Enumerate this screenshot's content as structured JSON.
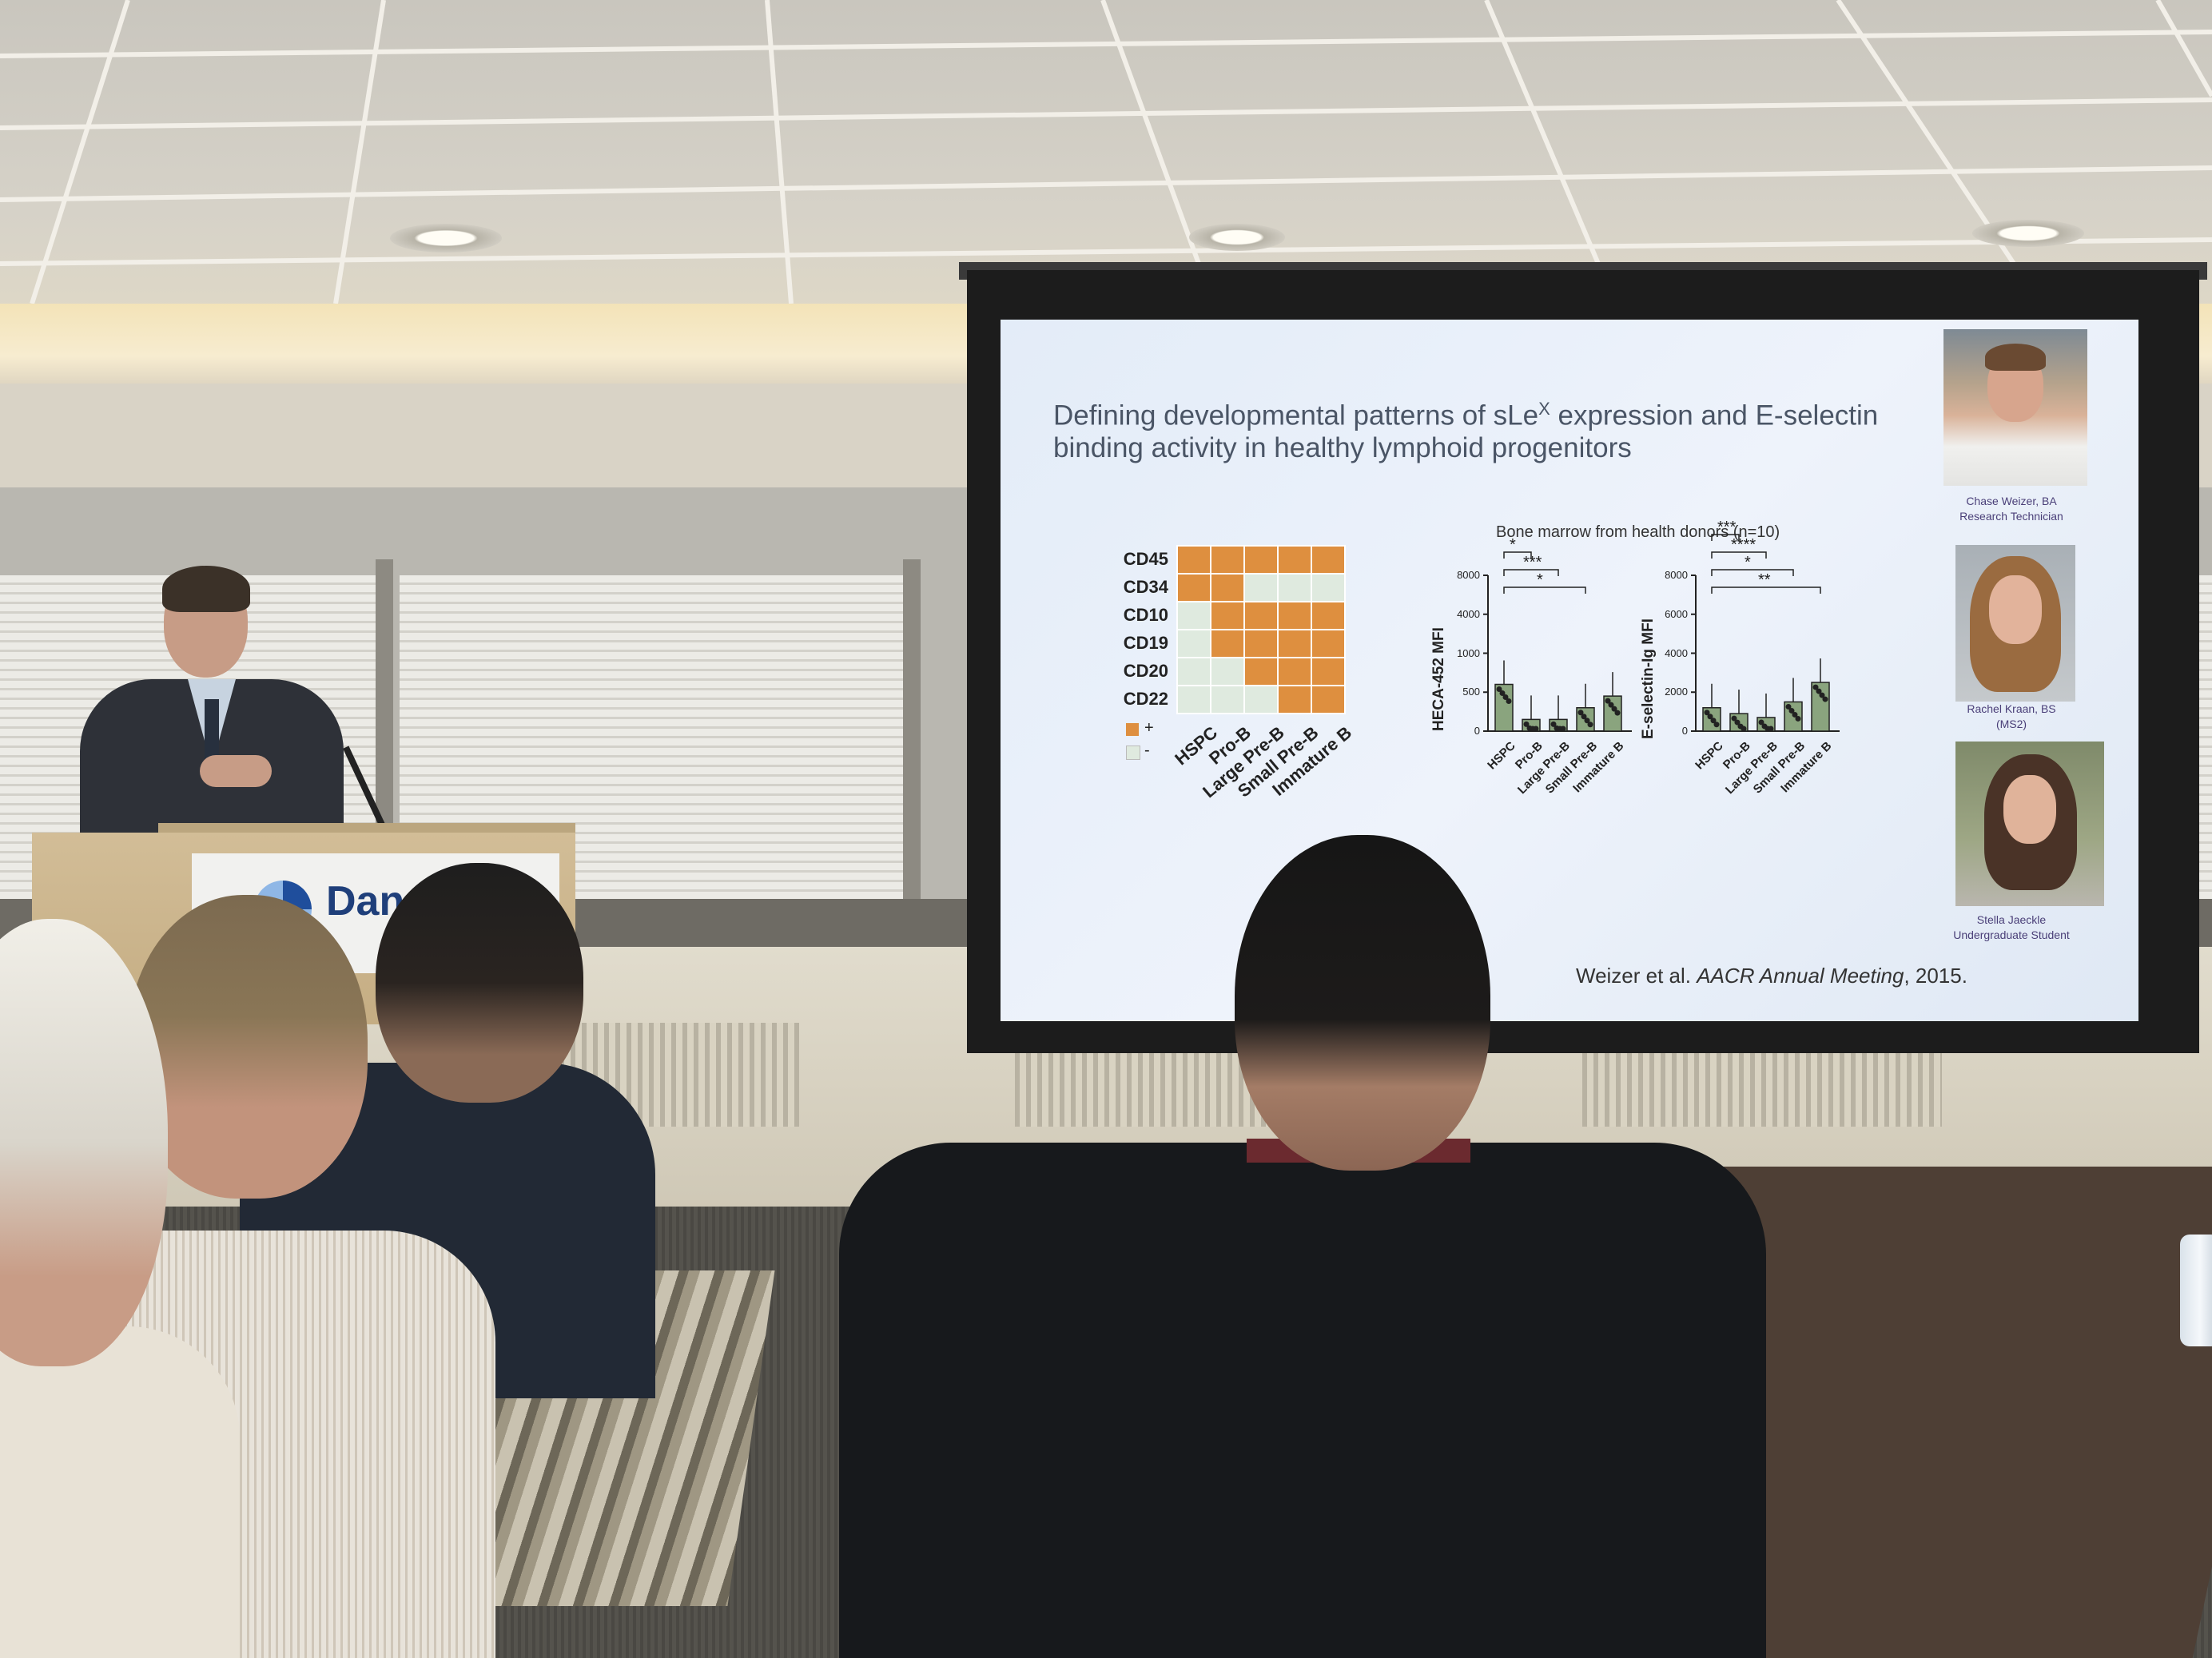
{
  "slide": {
    "title_line1_pre": "Defining developmental patterns of sLe",
    "title_sup": "X",
    "title_line1_post": " expression and E-selectin",
    "title_line2": "binding activity in healthy lymphoid progenitors",
    "matrix": {
      "rows": [
        "CD45",
        "CD34",
        "CD10",
        "CD19",
        "CD20",
        "CD22"
      ],
      "columns": [
        "HSPC",
        "Pro-B",
        "Large Pre-B",
        "Small Pre-B",
        "Immature B"
      ],
      "cells": [
        [
          1,
          1,
          1,
          1,
          1
        ],
        [
          1,
          1,
          0,
          0,
          0
        ],
        [
          0,
          1,
          1,
          1,
          1
        ],
        [
          0,
          1,
          1,
          1,
          1
        ],
        [
          0,
          0,
          1,
          1,
          1
        ],
        [
          0,
          0,
          0,
          1,
          1
        ]
      ],
      "legend_plus": "+",
      "legend_minus": "-",
      "color_on": "#de8f3f",
      "color_off": "#dfeadf"
    },
    "chart_subtitle": "Bone marrow from health donors (n=10)",
    "citation_pre": "Weizer et al. ",
    "citation_italic": "AACR Annual Meeting",
    "citation_post": ", 2015.",
    "people": [
      {
        "name": "Chase Weizer, BA",
        "role": "Research Technician"
      },
      {
        "name": "Rachel Kraan, BS",
        "role": "(MS2)"
      },
      {
        "name": "Stella Jaeckle",
        "role": "Undergraduate Student"
      }
    ]
  },
  "podium_text": "Dan",
  "chart_data": [
    {
      "type": "bar",
      "ylabel": "HECA-452 MFI",
      "categories": [
        "HSPC",
        "Pro-B",
        "Large Pre-B",
        "Small Pre-B",
        "Immature B"
      ],
      "values": [
        600,
        150,
        150,
        300,
        450
      ],
      "y_ticks": [
        "0",
        "500",
        "1000",
        "4000",
        "8000"
      ],
      "significance": [
        "*",
        "***",
        "*"
      ]
    },
    {
      "type": "bar",
      "ylabel": "E-selectin-Ig MFI",
      "categories": [
        "HSPC",
        "Pro-B",
        "Large Pre-B",
        "Small Pre-B",
        "Immature B"
      ],
      "values": [
        1200,
        900,
        700,
        1500,
        2500
      ],
      "y_ticks": [
        "0",
        "2000",
        "4000",
        "6000",
        "8000"
      ],
      "ylim": [
        0,
        8000
      ],
      "significance": [
        "***",
        "****",
        "*",
        "**"
      ]
    }
  ]
}
